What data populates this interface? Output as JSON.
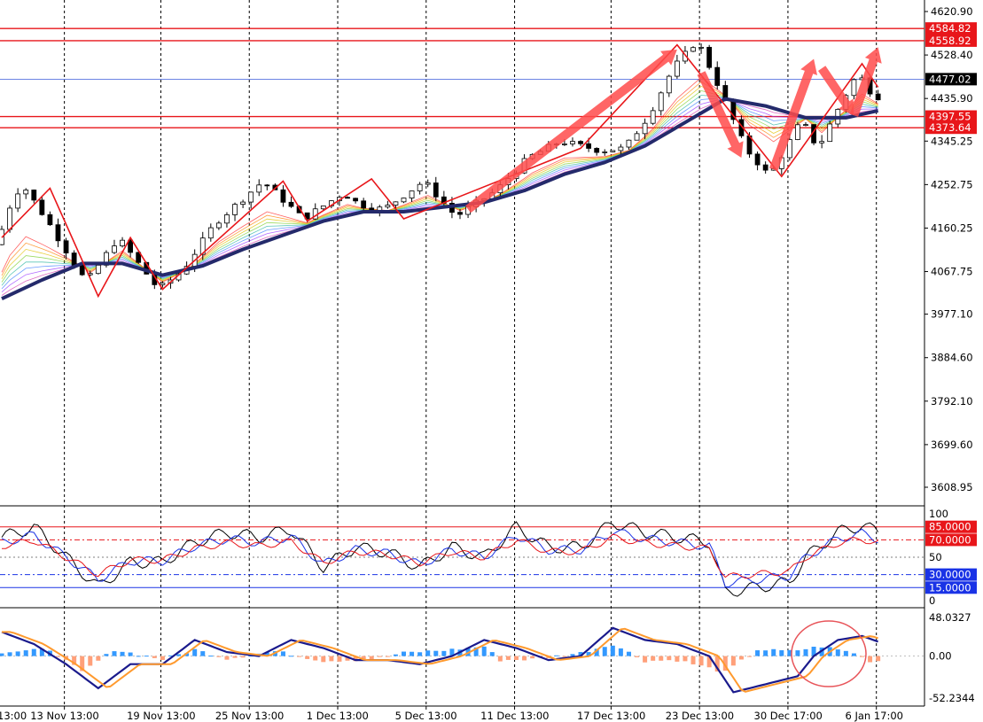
{
  "chart_data": [
    {
      "type": "candlestick",
      "pane": "price",
      "ylim": [
        3560,
        4660
      ],
      "grid": true,
      "price_ticks": [
        "4620.90",
        "4528.40",
        "4435.90",
        "4345.25",
        "4252.75",
        "4160.25",
        "4067.75",
        "3977.10",
        "3884.60",
        "3792.10",
        "3699.60",
        "3608.95"
      ],
      "current_price": {
        "value": 4477.02,
        "label": "4477.02"
      },
      "level_lines": [
        {
          "value": 4584.82,
          "label": "4584.82"
        },
        {
          "value": 4558.92,
          "label": "4558.92"
        },
        {
          "value": 4397.55,
          "label": "4397.55"
        },
        {
          "value": 4373.64,
          "label": "4373.64"
        }
      ],
      "swing_points": [
        [
          0,
          4125
        ],
        [
          1,
          4190
        ],
        [
          3,
          4255
        ],
        [
          6,
          4180
        ],
        [
          11,
          4045
        ],
        [
          15,
          4140
        ],
        [
          20,
          4030
        ],
        [
          23,
          4070
        ],
        [
          27,
          4170
        ],
        [
          33,
          4260
        ],
        [
          38,
          4180
        ],
        [
          43,
          4235
        ],
        [
          45,
          4210
        ],
        [
          48,
          4200
        ],
        [
          53,
          4260
        ],
        [
          57,
          4185
        ],
        [
          62,
          4240
        ],
        [
          66,
          4310
        ],
        [
          70,
          4345
        ],
        [
          75,
          4325
        ],
        [
          78,
          4330
        ],
        [
          81,
          4400
        ],
        [
          84,
          4500
        ],
        [
          87,
          4560
        ],
        [
          90,
          4450
        ],
        [
          93,
          4330
        ],
        [
          96,
          4270
        ],
        [
          100,
          4390
        ],
        [
          102,
          4330
        ],
        [
          105,
          4430
        ],
        [
          107,
          4490
        ],
        [
          109,
          4440
        ]
      ],
      "zigzag": [
        [
          0,
          4140
        ],
        [
          6,
          4245
        ],
        [
          12,
          4015
        ],
        [
          16,
          4140
        ],
        [
          20,
          4030
        ],
        [
          35,
          4260
        ],
        [
          38,
          4175
        ],
        [
          46,
          4265
        ],
        [
          50,
          4180
        ],
        [
          72,
          4330
        ],
        [
          84,
          4550
        ],
        [
          97,
          4270
        ],
        [
          107,
          4510
        ],
        [
          109,
          4460
        ]
      ],
      "moving_average_fast": [
        [
          0,
          4040
        ],
        [
          5,
          4085
        ],
        [
          10,
          4110
        ],
        [
          15,
          4095
        ],
        [
          20,
          4060
        ],
        [
          25,
          4095
        ],
        [
          30,
          4140
        ],
        [
          35,
          4170
        ],
        [
          40,
          4200
        ],
        [
          45,
          4210
        ],
        [
          50,
          4200
        ],
        [
          55,
          4215
        ],
        [
          60,
          4225
        ],
        [
          65,
          4255
        ],
        [
          70,
          4285
        ],
        [
          75,
          4310
        ],
        [
          80,
          4345
        ],
        [
          85,
          4400
        ],
        [
          90,
          4435
        ],
        [
          95,
          4420
        ],
        [
          100,
          4400
        ],
        [
          105,
          4390
        ],
        [
          109,
          4405
        ]
      ],
      "moving_average_slow": [
        [
          0,
          4010
        ],
        [
          5,
          4050
        ],
        [
          10,
          4085
        ],
        [
          15,
          4085
        ],
        [
          20,
          4060
        ],
        [
          25,
          4080
        ],
        [
          30,
          4115
        ],
        [
          35,
          4145
        ],
        [
          40,
          4175
        ],
        [
          45,
          4195
        ],
        [
          50,
          4195
        ],
        [
          55,
          4205
        ],
        [
          60,
          4215
        ],
        [
          65,
          4240
        ],
        [
          70,
          4275
        ],
        [
          75,
          4300
        ],
        [
          80,
          4335
        ],
        [
          85,
          4385
        ],
        [
          90,
          4435
        ],
        [
          95,
          4420
        ],
        [
          100,
          4395
        ],
        [
          105,
          4395
        ],
        [
          109,
          4410
        ]
      ]
    },
    {
      "type": "line",
      "pane": "oscillator",
      "ylim": [
        0,
        100
      ],
      "ticks": [
        "100",
        "50",
        "0"
      ],
      "levels": [
        {
          "value": 85,
          "label": "85.0000"
        },
        {
          "value": 70,
          "label": "70.0000"
        },
        {
          "value": 30,
          "label": "30.0000"
        },
        {
          "value": 15,
          "label": "15.0000"
        }
      ],
      "series_shapes": [
        [
          0,
          70
        ],
        [
          4,
          80
        ],
        [
          8,
          50
        ],
        [
          12,
          20
        ],
        [
          16,
          45
        ],
        [
          20,
          45
        ],
        [
          24,
          65
        ],
        [
          28,
          75
        ],
        [
          32,
          70
        ],
        [
          36,
          78
        ],
        [
          40,
          40
        ],
        [
          44,
          60
        ],
        [
          48,
          55
        ],
        [
          52,
          40
        ],
        [
          56,
          60
        ],
        [
          60,
          50
        ],
        [
          64,
          80
        ],
        [
          68,
          60
        ],
        [
          72,
          60
        ],
        [
          76,
          85
        ],
        [
          80,
          75
        ],
        [
          84,
          70
        ],
        [
          88,
          65
        ],
        [
          90,
          15
        ],
        [
          94,
          20
        ],
        [
          98,
          25
        ],
        [
          100,
          50
        ],
        [
          104,
          75
        ],
        [
          107,
          82
        ],
        [
          109,
          75
        ]
      ]
    },
    {
      "type": "bar+line",
      "pane": "macd",
      "ylim": [
        -52.2344,
        48.0327
      ],
      "ticks": [
        "48.0327",
        "0.00",
        "-52.2344"
      ],
      "line_points": [
        [
          0,
          30
        ],
        [
          4,
          15
        ],
        [
          8,
          -10
        ],
        [
          12,
          -40
        ],
        [
          16,
          -10
        ],
        [
          20,
          -10
        ],
        [
          24,
          20
        ],
        [
          28,
          5
        ],
        [
          32,
          0
        ],
        [
          36,
          20
        ],
        [
          40,
          10
        ],
        [
          44,
          -5
        ],
        [
          48,
          -5
        ],
        [
          52,
          -10
        ],
        [
          56,
          0
        ],
        [
          60,
          20
        ],
        [
          64,
          10
        ],
        [
          68,
          -5
        ],
        [
          72,
          0
        ],
        [
          76,
          35
        ],
        [
          80,
          20
        ],
        [
          84,
          15
        ],
        [
          88,
          0
        ],
        [
          91,
          -45
        ],
        [
          95,
          -35
        ],
        [
          99,
          -25
        ],
        [
          101,
          0
        ],
        [
          104,
          20
        ],
        [
          107,
          25
        ],
        [
          109,
          18
        ]
      ],
      "histogram_shapes": [
        [
          0,
          5
        ],
        [
          6,
          8
        ],
        [
          10,
          -20
        ],
        [
          14,
          8
        ],
        [
          20,
          -4
        ],
        [
          24,
          8
        ],
        [
          28,
          -3
        ],
        [
          34,
          6
        ],
        [
          40,
          -6
        ],
        [
          46,
          -4
        ],
        [
          50,
          4
        ],
        [
          56,
          8
        ],
        [
          60,
          12
        ],
        [
          62,
          -5
        ],
        [
          66,
          -4
        ],
        [
          72,
          4
        ],
        [
          76,
          15
        ],
        [
          80,
          -6
        ],
        [
          84,
          -5
        ],
        [
          90,
          -20
        ],
        [
          94,
          8
        ],
        [
          98,
          6
        ],
        [
          102,
          12
        ],
        [
          106,
          4
        ],
        [
          108,
          -6
        ]
      ]
    }
  ],
  "time_axis": {
    "labels": [
      {
        "text": "13:00",
        "bar": 0
      },
      {
        "text": "13 Nov 13:00",
        "bar": 9
      },
      {
        "text": "19 Nov 13:00",
        "bar": 21
      },
      {
        "text": "25 Nov 13:00",
        "bar": 32
      },
      {
        "text": "1 Dec 13:00",
        "bar": 43
      },
      {
        "text": "5 Dec 13:00",
        "bar": 54
      },
      {
        "text": "11 Dec 13:00",
        "bar": 65
      },
      {
        "text": "17 Dec 13:00",
        "bar": 77
      },
      {
        "text": "23 Dec 13:00",
        "bar": 88
      },
      {
        "text": "30 Dec 17:00",
        "bar": 99
      },
      {
        "text": "6 Jan 17:00",
        "bar": 110
      }
    ]
  },
  "colors": {
    "level_red": "#e8161a",
    "current_tag": "#000000",
    "osc_blue": "#1a33e6",
    "macd_line": "#1a1a8c",
    "macd_signal": "#ff9a2e",
    "hist_pos": "#3399ff",
    "hist_neg": "#ffa07a",
    "ma_dark": "#242a6b",
    "arrow": "#ff4b4b"
  }
}
